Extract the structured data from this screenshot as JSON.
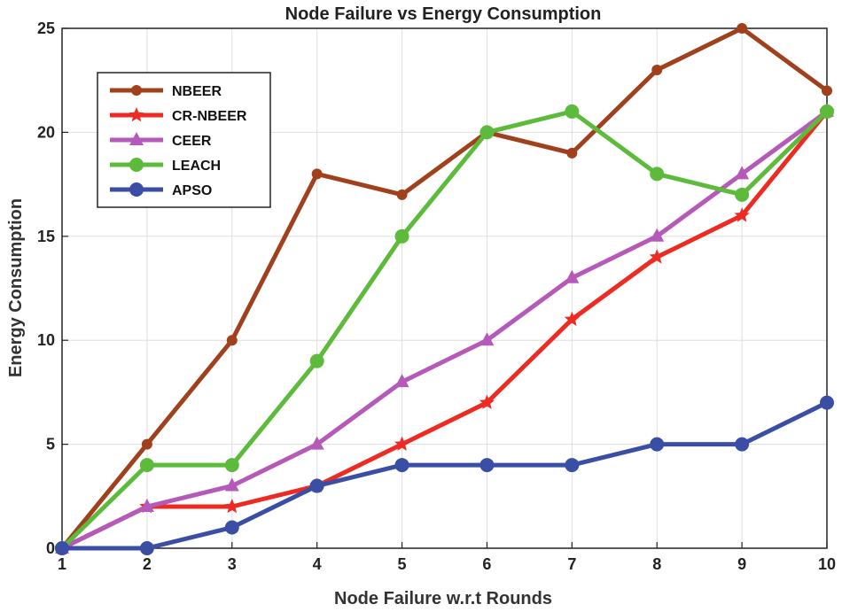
{
  "chart_data": {
    "type": "line",
    "title": "Node Failure vs Energy Consumption",
    "xlabel": "Node Failure w.r.t Rounds",
    "ylabel": "Energy Consumption",
    "x": [
      1,
      2,
      3,
      4,
      5,
      6,
      7,
      8,
      9,
      10
    ],
    "xlim": [
      1,
      10
    ],
    "ylim": [
      0,
      25
    ],
    "xticks": [
      "1",
      "2",
      "3",
      "4",
      "5",
      "6",
      "7",
      "8",
      "9",
      "10"
    ],
    "yticks": [
      "0",
      "5",
      "10",
      "15",
      "20",
      "25"
    ],
    "grid": true,
    "legend_position": "top-left",
    "series": [
      {
        "name": "NBEER",
        "color": "#a0401c",
        "marker": "circle-small",
        "values": [
          0,
          5,
          10,
          18,
          17,
          20,
          19,
          23,
          25,
          22
        ]
      },
      {
        "name": "CR-NBEER",
        "color": "#ee2b23",
        "marker": "star",
        "values": [
          0,
          2,
          2,
          3,
          5,
          7,
          11,
          14,
          16,
          21
        ]
      },
      {
        "name": "CEER",
        "color": "#b55ab8",
        "marker": "triangle",
        "values": [
          0,
          2,
          3,
          5,
          8,
          10,
          13,
          15,
          18,
          21
        ]
      },
      {
        "name": "LEACH",
        "color": "#5dbb3c",
        "marker": "circle",
        "values": [
          0,
          4,
          4,
          9,
          15,
          20,
          21,
          18,
          17,
          21
        ]
      },
      {
        "name": "APSO",
        "color": "#3a4ea6",
        "marker": "circle",
        "values": [
          0,
          0,
          1,
          3,
          4,
          4,
          4,
          5,
          5,
          7
        ]
      }
    ]
  }
}
